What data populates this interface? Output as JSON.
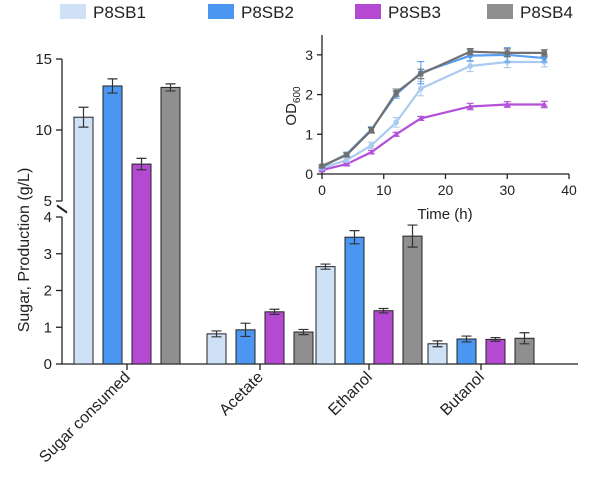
{
  "colors": {
    "P8SB1": "#cfe1f7",
    "P8SB2": "#4a96f0",
    "P8SB3": "#b44ad2",
    "P8SB4": "#8f8f8f",
    "inset_P8SB1": "#aacbef",
    "inset_P8SB2": "#5a9ef2",
    "inset_P8SB3": "#b450d8",
    "inset_P8SB4": "#707070"
  },
  "legend": [
    "P8SB1",
    "P8SB2",
    "P8SB3",
    "P8SB4"
  ],
  "chart_data": [
    {
      "type": "bar",
      "title": "",
      "xlabel": "",
      "ylabel": "Sugar, Production (g/L)",
      "categories": [
        "Sugar consumed",
        "Acetate",
        "Ethanol",
        "Butanol"
      ],
      "y_axis_break": {
        "lower": [
          0,
          4
        ],
        "upper": [
          5,
          15
        ]
      },
      "yticks_lower": [
        "0",
        "1",
        "2",
        "3",
        "4"
      ],
      "yticks_upper": [
        "5",
        "10",
        "15"
      ],
      "series": [
        {
          "name": "P8SB1",
          "values": [
            10.9,
            0.82,
            2.65,
            0.55
          ],
          "errors": [
            0.7,
            0.08,
            0.07,
            0.08
          ]
        },
        {
          "name": "P8SB2",
          "values": [
            13.1,
            0.93,
            3.45,
            0.68
          ],
          "errors": [
            0.5,
            0.18,
            0.18,
            0.08
          ]
        },
        {
          "name": "P8SB3",
          "values": [
            7.6,
            1.42,
            1.45,
            0.67
          ],
          "errors": [
            0.4,
            0.07,
            0.06,
            0.05
          ]
        },
        {
          "name": "P8SB4",
          "values": [
            13.0,
            0.87,
            3.48,
            0.7
          ],
          "errors": [
            0.25,
            0.07,
            0.3,
            0.15
          ]
        }
      ]
    },
    {
      "type": "line",
      "title": "",
      "xlabel": "Time (h)",
      "ylabel_main": "OD",
      "ylabel_sub": "600",
      "xlim": [
        0,
        40
      ],
      "ylim": [
        0,
        3.5
      ],
      "xticks": [
        "0",
        "10",
        "20",
        "30",
        "40"
      ],
      "yticks": [
        "0",
        "1",
        "2",
        "3"
      ],
      "x": [
        0,
        4,
        8,
        12,
        16,
        24,
        30,
        36
      ],
      "series": [
        {
          "name": "P8SB1",
          "values": [
            0.15,
            0.35,
            0.72,
            1.3,
            2.15,
            2.72,
            2.82,
            2.82
          ],
          "errors": [
            0.03,
            0.05,
            0.08,
            0.12,
            0.18,
            0.14,
            0.14,
            0.12
          ]
        },
        {
          "name": "P8SB2",
          "values": [
            0.18,
            0.5,
            1.12,
            2.0,
            2.55,
            2.98,
            3.0,
            2.92
          ],
          "errors": [
            0.03,
            0.05,
            0.07,
            0.09,
            0.28,
            0.14,
            0.18,
            0.1
          ]
        },
        {
          "name": "P8SB3",
          "values": [
            0.1,
            0.25,
            0.55,
            1.0,
            1.4,
            1.7,
            1.75,
            1.75
          ],
          "errors": [
            0.02,
            0.03,
            0.04,
            0.05,
            0.05,
            0.08,
            0.07,
            0.08
          ]
        },
        {
          "name": "P8SB4",
          "values": [
            0.2,
            0.48,
            1.1,
            2.05,
            2.52,
            3.08,
            3.05,
            3.05
          ],
          "errors": [
            0.03,
            0.05,
            0.07,
            0.09,
            0.12,
            0.08,
            0.1,
            0.08
          ]
        }
      ]
    }
  ]
}
